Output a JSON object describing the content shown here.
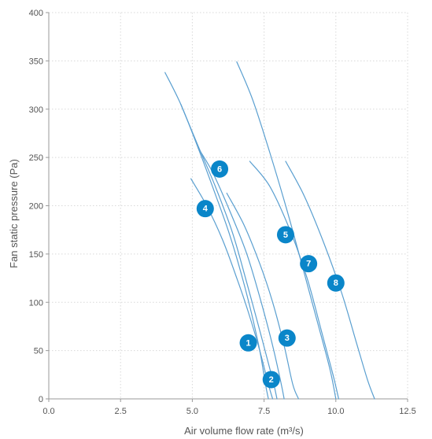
{
  "chart_data": {
    "type": "line",
    "title": "",
    "xlabel": "Air volume flow rate (m³/s)",
    "ylabel": "Fan static pressure (Pa)",
    "xlim": [
      0,
      12.5
    ],
    "ylim": [
      0,
      400
    ],
    "xticks": [
      0,
      2.5,
      5,
      7.5,
      10,
      12.5
    ],
    "xtick_labels": [
      "0.0",
      "2.5",
      "5.0",
      "7.5",
      "10.0",
      "12.5"
    ],
    "yticks": [
      0,
      50,
      100,
      150,
      200,
      250,
      300,
      350,
      400
    ],
    "ytick_labels": [
      "0",
      "50",
      "100",
      "150",
      "200",
      "250",
      "300",
      "350",
      "400"
    ],
    "grid": true,
    "series": [
      {
        "label": "1",
        "label_at": [
          6.95,
          58
        ],
        "points": [
          [
            4.05,
            338
          ],
          [
            4.6,
            305
          ],
          [
            5.2,
            260
          ],
          [
            5.8,
            212
          ],
          [
            6.3,
            170
          ],
          [
            6.7,
            130
          ],
          [
            7.05,
            90
          ],
          [
            7.35,
            50
          ],
          [
            7.55,
            15
          ],
          [
            7.65,
            0
          ]
        ]
      },
      {
        "label": "2",
        "label_at": [
          7.75,
          20
        ],
        "points": [
          [
            4.95,
            228
          ],
          [
            5.5,
            200
          ],
          [
            6.05,
            165
          ],
          [
            6.55,
            125
          ],
          [
            6.95,
            90
          ],
          [
            7.35,
            50
          ],
          [
            7.65,
            15
          ],
          [
            7.8,
            0
          ]
        ]
      },
      {
        "label": "3",
        "label_at": [
          8.3,
          63
        ],
        "points": [
          [
            6.2,
            213
          ],
          [
            6.8,
            180
          ],
          [
            7.35,
            140
          ],
          [
            7.8,
            100
          ],
          [
            8.2,
            55
          ],
          [
            8.5,
            15
          ],
          [
            8.7,
            0
          ]
        ]
      },
      {
        "label": "4",
        "label_at": [
          5.45,
          197
        ],
        "points": [
          [
            5.2,
            260
          ],
          [
            5.7,
            235
          ],
          [
            6.3,
            195
          ],
          [
            6.9,
            150
          ],
          [
            7.4,
            100
          ],
          [
            7.8,
            55
          ],
          [
            8.1,
            15
          ],
          [
            8.2,
            0
          ]
        ]
      },
      {
        "label": "5",
        "label_at": [
          8.25,
          170
        ],
        "points": [
          [
            6.55,
            349
          ],
          [
            7.1,
            310
          ],
          [
            7.7,
            255
          ],
          [
            8.3,
            195
          ],
          [
            8.9,
            130
          ],
          [
            9.4,
            75
          ],
          [
            9.8,
            30
          ],
          [
            10.0,
            0
          ]
        ]
      },
      {
        "label": "6",
        "label_at": [
          5.95,
          238
        ],
        "points": [
          [
            4.6,
            305
          ],
          [
            5.2,
            262
          ],
          [
            5.8,
            220
          ],
          [
            6.4,
            172
          ],
          [
            6.9,
            120
          ],
          [
            7.4,
            65
          ],
          [
            7.8,
            20
          ],
          [
            7.95,
            0
          ]
        ]
      },
      {
        "label": "7",
        "label_at": [
          9.05,
          140
        ],
        "points": [
          [
            7.0,
            246
          ],
          [
            7.7,
            220
          ],
          [
            8.4,
            175
          ],
          [
            9.0,
            125
          ],
          [
            9.5,
            70
          ],
          [
            9.9,
            25
          ],
          [
            10.1,
            0
          ]
        ]
      },
      {
        "label": "8",
        "label_at": [
          10.0,
          120
        ],
        "points": [
          [
            8.25,
            246
          ],
          [
            8.9,
            210
          ],
          [
            9.6,
            160
          ],
          [
            10.2,
            110
          ],
          [
            10.7,
            60
          ],
          [
            11.1,
            20
          ],
          [
            11.35,
            0
          ]
        ]
      }
    ]
  }
}
